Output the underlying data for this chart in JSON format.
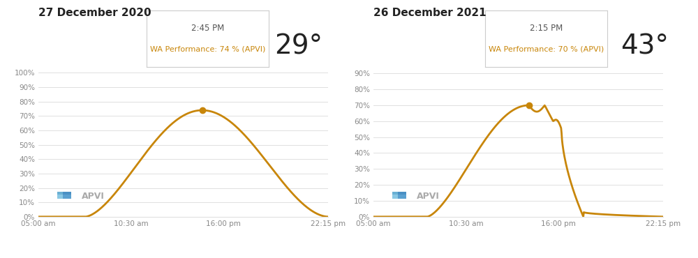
{
  "chart1": {
    "title": "27 December 2020",
    "box_time": "2:45 PM",
    "box_perf": "WA Performance: 74 % (APVI)",
    "temp": "29°",
    "yticks": [
      0,
      10,
      20,
      30,
      40,
      50,
      60,
      70,
      80,
      90,
      100
    ],
    "ylim": [
      0,
      104
    ],
    "peak_x_h": 9.75,
    "peak_y": 74,
    "curve_color": "#C8860A"
  },
  "chart2": {
    "title": "26 December 2021",
    "box_time": "2:15 PM",
    "box_perf": "WA Performance: 70 % (APVI)",
    "temp": "43°",
    "yticks": [
      0,
      10,
      20,
      30,
      40,
      50,
      60,
      70,
      80,
      90
    ],
    "ylim": [
      0,
      94
    ],
    "peak_x_h": 9.25,
    "peak_y": 70,
    "curve_color": "#C8860A"
  },
  "xtick_hours": [
    0.0,
    5.5,
    11.0,
    17.25
  ],
  "xtick_labels": [
    "05:00 am",
    "10:30 am",
    "16:00 pm",
    "22:15 pm"
  ],
  "total_hours": 17.25,
  "start_hour": 5.0,
  "bg_color": "#ffffff",
  "grid_color": "#e0e0e0",
  "title_fontsize": 11,
  "temp_fontsize": 28,
  "perf_color": "#C8860A",
  "title_color": "#222222",
  "tick_label_color": "#888888",
  "box_border_color": "#cccccc",
  "box_time_color": "#555555"
}
